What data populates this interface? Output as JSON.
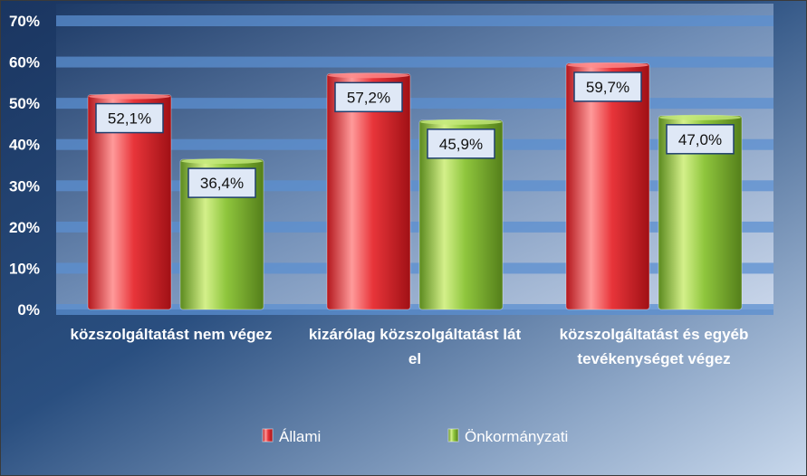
{
  "chart_data": {
    "type": "bar",
    "categories": [
      [
        "közszolgáltatást nem végez"
      ],
      [
        "kizárólag közszolgáltatást lát",
        "el"
      ],
      [
        "közszolgáltatást és egyéb",
        "tevékenységet végez"
      ]
    ],
    "series": [
      {
        "name": "Állami",
        "values": [
          52.1,
          57.2,
          59.7
        ],
        "labels": [
          "52,1%",
          "57,2%",
          "59,7%"
        ],
        "color": "#e8353a"
      },
      {
        "name": "Önkormányzati",
        "values": [
          36.4,
          45.9,
          47.0
        ],
        "labels": [
          "36,4%",
          "45,9%",
          "47,0%"
        ],
        "color": "#8fc63d"
      }
    ],
    "ylim": [
      0,
      70
    ],
    "yticks": [
      "0%",
      "10%",
      "20%",
      "30%",
      "40%",
      "50%",
      "60%",
      "70%"
    ],
    "grid": true,
    "legend": "bottom",
    "colors": {
      "background_dark": "#1a3560",
      "background_light": "#c8d8ec",
      "grid_band": "#5b8fd0"
    }
  }
}
